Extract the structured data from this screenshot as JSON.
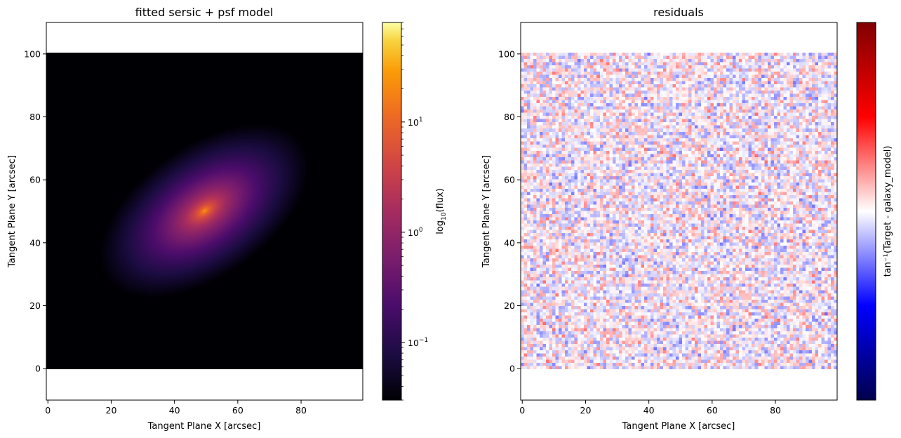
{
  "chart_data": [
    {
      "type": "heatmap",
      "title": "fitted sersic + psf model",
      "xlabel": "Tangent Plane X [arcsec]",
      "ylabel": "Tangent Plane Y [arcsec]",
      "xlim": [
        -0.5,
        99.5
      ],
      "ylim": [
        -10,
        110
      ],
      "xticks": [
        "0",
        "20",
        "40",
        "60",
        "80"
      ],
      "yticks": [
        "0",
        "20",
        "40",
        "60",
        "80",
        "100"
      ],
      "image_extent": {
        "x": [
          0,
          100
        ],
        "y": [
          0,
          100
        ]
      },
      "colormap": "inferno",
      "color_scale": "log",
      "model": {
        "center": [
          50,
          50
        ],
        "position_angle_deg": 35,
        "axis_ratio": 0.55,
        "peak_flux": 70
      },
      "colorbar": {
        "label": "log10(flux)",
        "range": [
          0.03,
          80
        ],
        "ticks": [
          {
            "value": 0.1,
            "text": "10",
            "sup": "−1"
          },
          {
            "value": 1,
            "text": "10",
            "sup": "0"
          },
          {
            "value": 10,
            "text": "10",
            "sup": "1"
          }
        ]
      }
    },
    {
      "type": "heatmap",
      "title": "residuals",
      "xlabel": "Tangent Plane X [arcsec]",
      "ylabel": "Tangent Plane Y [arcsec]",
      "xlim": [
        -0.5,
        99.5
      ],
      "ylim": [
        -10,
        110
      ],
      "xticks": [
        "0",
        "20",
        "40",
        "60",
        "80"
      ],
      "yticks": [
        "0",
        "20",
        "40",
        "60",
        "80",
        "100"
      ],
      "image_extent": {
        "x": [
          0,
          100
        ],
        "y": [
          0,
          100
        ]
      },
      "colormap": "seismic",
      "grid_cells": 100,
      "colorbar": {
        "label": "tan⁻¹(Target - galaxy_model)",
        "range": [
          -1.57,
          1.57
        ],
        "ticks": []
      }
    }
  ]
}
